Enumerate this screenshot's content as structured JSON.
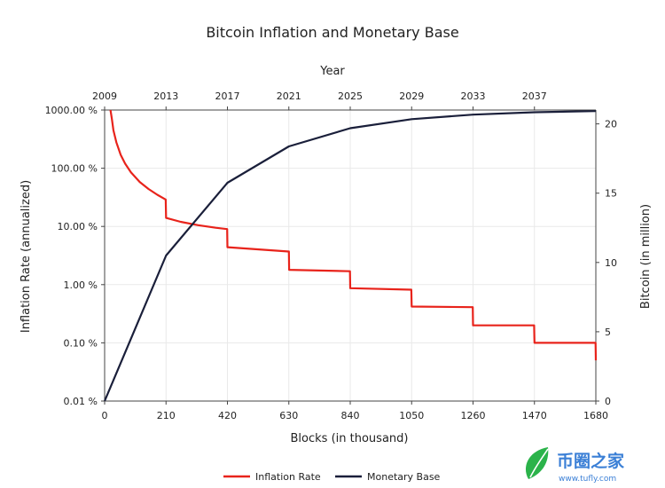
{
  "chart_data": {
    "type": "line",
    "title": "Bitcoin Inflation and Monetary Base",
    "x_axis": {
      "label": "Blocks (in thousand)",
      "range": [
        0,
        1680
      ],
      "ticks": [
        0,
        210,
        420,
        630,
        840,
        1050,
        1260,
        1470,
        1680
      ]
    },
    "x2_axis": {
      "label": "Year",
      "ticks": [
        "2009",
        "2013",
        "2017",
        "2021",
        "2025",
        "2029",
        "2033",
        "2037"
      ]
    },
    "y_left": {
      "label": "Inflation Rate (annualized)",
      "scale": "log",
      "range": [
        0.01,
        1000
      ],
      "tick_values": [
        1000,
        100,
        10,
        1,
        0.1,
        0.01
      ],
      "tick_labels": [
        "1000.00 %",
        "100.00 %",
        "10.00 %",
        "1.00 %",
        "0.10 %",
        "0.01 %"
      ]
    },
    "y_right": {
      "label": "Bitcoin (in million)",
      "range": [
        0,
        21
      ],
      "ticks": [
        0,
        5,
        10,
        15,
        20
      ]
    },
    "grid": true,
    "legend": "bottom-center",
    "series": [
      {
        "name": "Inflation Rate",
        "axis": "left",
        "color": "#e8231b",
        "points": [
          [
            20,
            1000
          ],
          [
            25,
            700
          ],
          [
            30,
            450
          ],
          [
            40,
            280
          ],
          [
            55,
            170
          ],
          [
            70,
            120
          ],
          [
            90,
            85
          ],
          [
            120,
            58
          ],
          [
            150,
            44
          ],
          [
            180,
            35
          ],
          [
            209,
            29
          ],
          [
            210,
            14
          ],
          [
            260,
            12
          ],
          [
            320,
            10.5
          ],
          [
            380,
            9.5
          ],
          [
            419,
            9
          ],
          [
            420,
            4.4
          ],
          [
            630,
            3.7
          ],
          [
            631,
            1.8
          ],
          [
            839,
            1.7
          ],
          [
            840,
            0.87
          ],
          [
            1049,
            0.82
          ],
          [
            1050,
            0.42
          ],
          [
            1259,
            0.41
          ],
          [
            1260,
            0.2
          ],
          [
            1469,
            0.2
          ],
          [
            1470,
            0.1
          ],
          [
            1679,
            0.1
          ],
          [
            1680,
            0.05
          ]
        ]
      },
      {
        "name": "Monetary Base",
        "axis": "right",
        "color": "#1a1f3a",
        "points": [
          [
            0,
            0
          ],
          [
            210,
            10.5
          ],
          [
            420,
            15.75
          ],
          [
            630,
            18.375
          ],
          [
            840,
            19.6875
          ],
          [
            1050,
            20.34
          ],
          [
            1260,
            20.67
          ],
          [
            1470,
            20.84
          ],
          [
            1680,
            20.92
          ]
        ]
      }
    ]
  },
  "watermark": {
    "brand": "币圈之家",
    "url": "www.tufly.com",
    "colors": {
      "primary": "#3a7fd6",
      "leaf": "#2bb34a"
    }
  }
}
